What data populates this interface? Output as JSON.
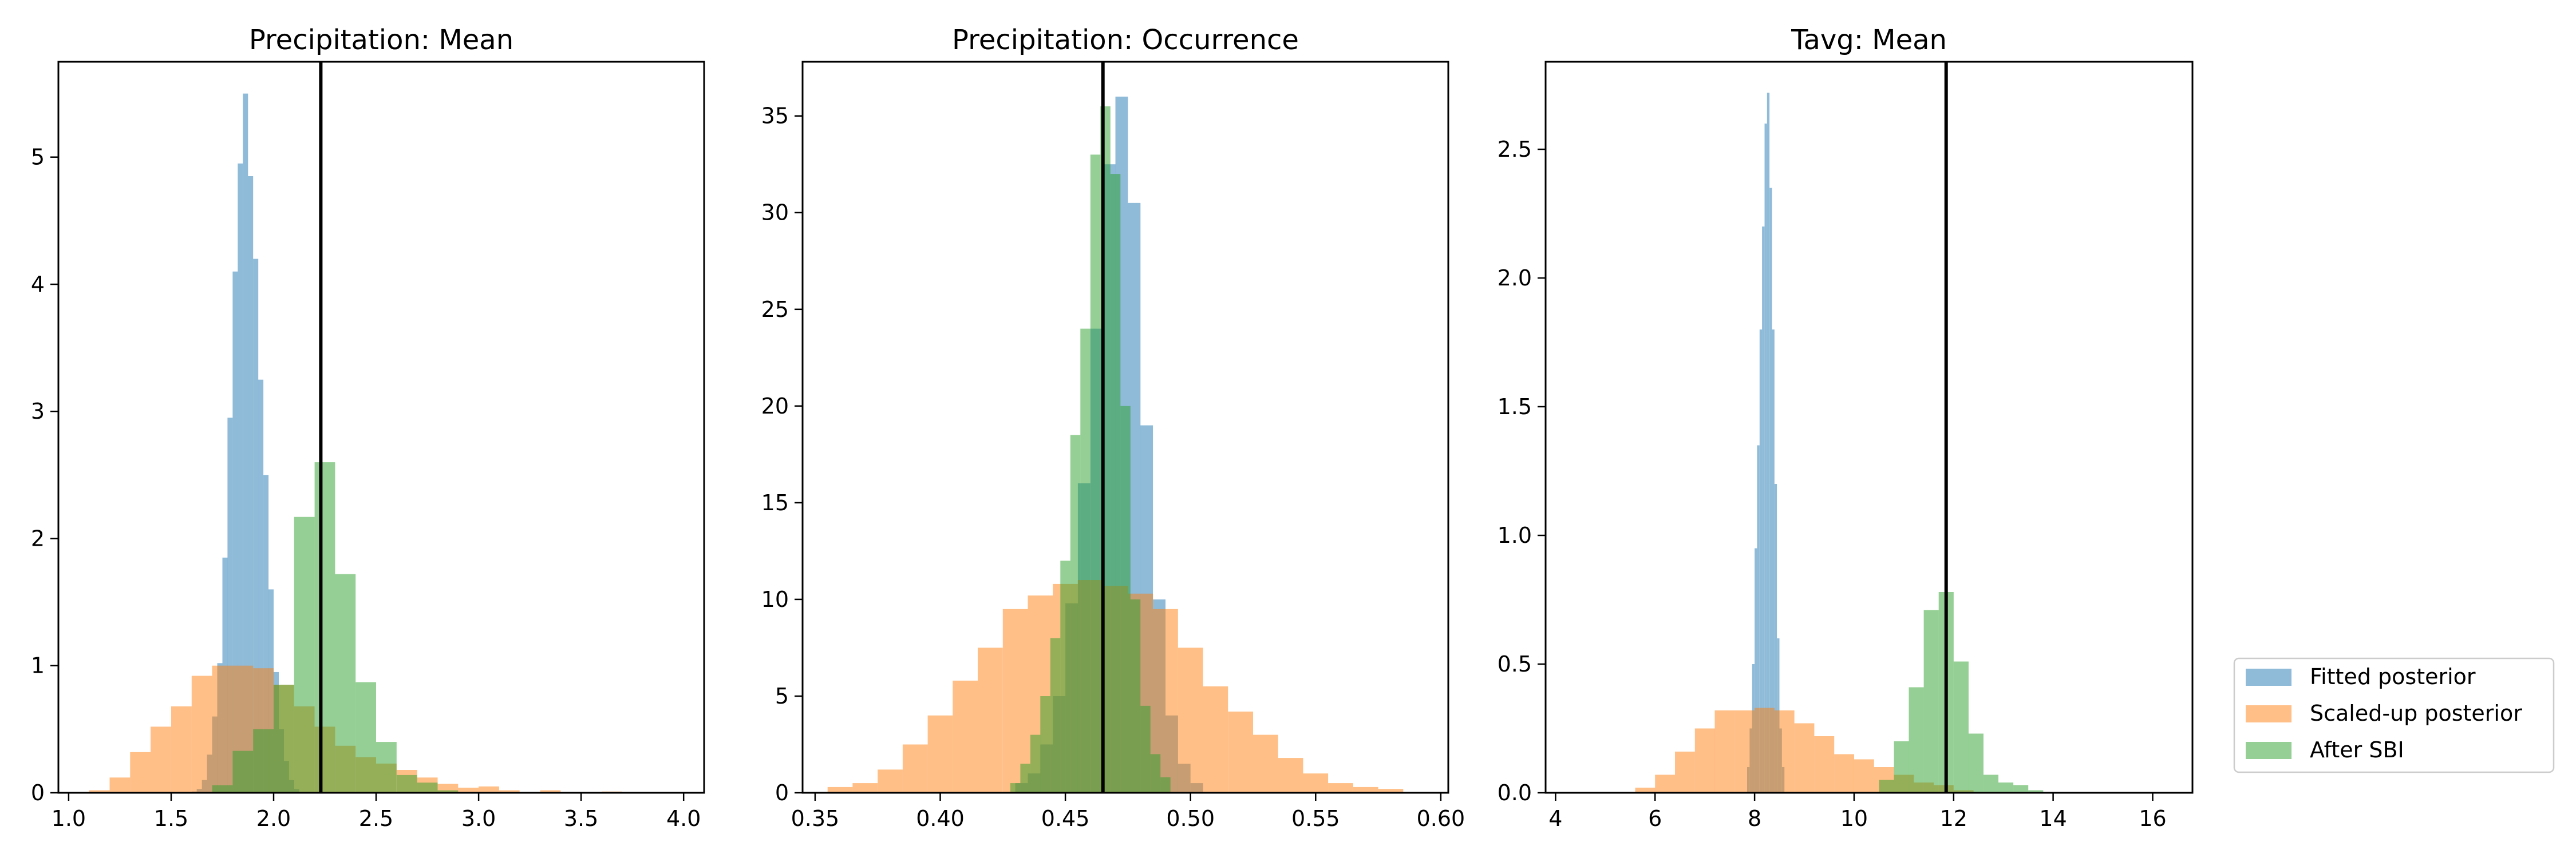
{
  "legend": {
    "placement": "right",
    "entries": [
      {
        "label": "Fitted posterior",
        "color": "#1f77b4"
      },
      {
        "label": "Scaled-up posterior",
        "color": "#ff7f0e"
      },
      {
        "label": "After SBI",
        "color": "#2ca02c"
      }
    ]
  },
  "chart_data": [
    {
      "type": "bar",
      "title": "Precipitation: Mean",
      "xlabel": "",
      "ylabel": "",
      "xlim": [
        0.95,
        4.1
      ],
      "ylim": [
        0,
        5.75
      ],
      "xticks": [
        "1.0",
        "1.5",
        "2.0",
        "2.5",
        "3.0",
        "3.5",
        "4.0"
      ],
      "xtick_values": [
        1.0,
        1.5,
        2.0,
        2.5,
        3.0,
        3.5,
        4.0
      ],
      "yticks": [
        "0",
        "1",
        "2",
        "3",
        "4",
        "5"
      ],
      "ytick_values": [
        0,
        1,
        2,
        3,
        4,
        5
      ],
      "reference_line_x": 2.23,
      "series": [
        {
          "name": "Fitted posterior",
          "bins": [
            [
              1.6,
              1.625,
              0.01
            ],
            [
              1.625,
              1.65,
              0.03
            ],
            [
              1.65,
              1.675,
              0.1
            ],
            [
              1.675,
              1.7,
              0.3
            ],
            [
              1.7,
              1.725,
              0.6
            ],
            [
              1.725,
              1.75,
              1.02
            ],
            [
              1.75,
              1.775,
              1.85
            ],
            [
              1.775,
              1.8,
              2.95
            ],
            [
              1.8,
              1.825,
              4.1
            ],
            [
              1.825,
              1.85,
              4.95
            ],
            [
              1.85,
              1.875,
              5.5
            ],
            [
              1.875,
              1.9,
              4.85
            ],
            [
              1.9,
              1.925,
              4.2
            ],
            [
              1.925,
              1.95,
              3.25
            ],
            [
              1.95,
              1.975,
              2.5
            ],
            [
              1.975,
              2.0,
              1.6
            ],
            [
              2.0,
              2.025,
              0.95
            ],
            [
              2.025,
              2.05,
              0.5
            ],
            [
              2.05,
              2.075,
              0.25
            ],
            [
              2.075,
              2.1,
              0.1
            ],
            [
              2.1,
              2.125,
              0.03
            ]
          ]
        },
        {
          "name": "Scaled-up posterior",
          "bins": [
            [
              1.1,
              1.2,
              0.02
            ],
            [
              1.2,
              1.3,
              0.12
            ],
            [
              1.3,
              1.4,
              0.32
            ],
            [
              1.4,
              1.5,
              0.52
            ],
            [
              1.5,
              1.6,
              0.68
            ],
            [
              1.6,
              1.7,
              0.92
            ],
            [
              1.7,
              1.8,
              1.0
            ],
            [
              1.8,
              1.9,
              1.0
            ],
            [
              1.9,
              2.0,
              0.98
            ],
            [
              2.0,
              2.1,
              0.85
            ],
            [
              2.1,
              2.2,
              0.68
            ],
            [
              2.2,
              2.3,
              0.52
            ],
            [
              2.3,
              2.4,
              0.37
            ],
            [
              2.4,
              2.5,
              0.28
            ],
            [
              2.5,
              2.6,
              0.23
            ],
            [
              2.6,
              2.7,
              0.18
            ],
            [
              2.7,
              2.8,
              0.12
            ],
            [
              2.8,
              2.9,
              0.07
            ],
            [
              2.9,
              3.0,
              0.04
            ],
            [
              3.0,
              3.1,
              0.05
            ],
            [
              3.1,
              3.2,
              0.02
            ],
            [
              3.3,
              3.4,
              0.02
            ],
            [
              3.6,
              3.7,
              0.01
            ]
          ]
        },
        {
          "name": "After SBI",
          "bins": [
            [
              1.7,
              1.8,
              0.06
            ],
            [
              1.8,
              1.9,
              0.33
            ],
            [
              1.9,
              2.0,
              0.5
            ],
            [
              2.0,
              2.1,
              0.85
            ],
            [
              2.1,
              2.2,
              2.17
            ],
            [
              2.2,
              2.3,
              2.6
            ],
            [
              2.3,
              2.4,
              1.72
            ],
            [
              2.4,
              2.5,
              0.87
            ],
            [
              2.5,
              2.6,
              0.4
            ],
            [
              2.6,
              2.7,
              0.14
            ],
            [
              2.7,
              2.8,
              0.08
            ],
            [
              2.8,
              2.9,
              0.02
            ]
          ]
        }
      ]
    },
    {
      "type": "bar",
      "title": "Precipitation: Occurrence",
      "xlabel": "",
      "ylabel": "",
      "xlim": [
        0.345,
        0.603
      ],
      "ylim": [
        0,
        37.8
      ],
      "xticks": [
        "0.35",
        "0.40",
        "0.45",
        "0.50",
        "0.55",
        "0.60"
      ],
      "xtick_values": [
        0.35,
        0.4,
        0.45,
        0.5,
        0.55,
        0.6
      ],
      "yticks": [
        "0",
        "5",
        "10",
        "15",
        "20",
        "25",
        "30",
        "35"
      ],
      "ytick_values": [
        0,
        5,
        10,
        15,
        20,
        25,
        30,
        35
      ],
      "reference_line_x": 0.465,
      "series": [
        {
          "name": "Fitted posterior",
          "bins": [
            [
              0.43,
              0.435,
              0.5
            ],
            [
              0.435,
              0.44,
              1.0
            ],
            [
              0.44,
              0.445,
              2.5
            ],
            [
              0.445,
              0.45,
              5.0
            ],
            [
              0.45,
              0.455,
              9.8
            ],
            [
              0.455,
              0.46,
              16.0
            ],
            [
              0.46,
              0.465,
              24.0
            ],
            [
              0.465,
              0.47,
              32.5
            ],
            [
              0.47,
              0.475,
              36.0
            ],
            [
              0.475,
              0.48,
              30.5
            ],
            [
              0.48,
              0.485,
              19.0
            ],
            [
              0.485,
              0.49,
              10.0
            ],
            [
              0.49,
              0.495,
              4.0
            ],
            [
              0.495,
              0.5,
              1.5
            ],
            [
              0.5,
              0.505,
              0.5
            ]
          ]
        },
        {
          "name": "Scaled-up posterior",
          "bins": [
            [
              0.355,
              0.365,
              0.3
            ],
            [
              0.365,
              0.375,
              0.5
            ],
            [
              0.375,
              0.385,
              1.2
            ],
            [
              0.385,
              0.395,
              2.5
            ],
            [
              0.395,
              0.405,
              4.0
            ],
            [
              0.405,
              0.415,
              5.8
            ],
            [
              0.415,
              0.425,
              7.5
            ],
            [
              0.425,
              0.435,
              9.5
            ],
            [
              0.435,
              0.445,
              10.2
            ],
            [
              0.445,
              0.455,
              10.8
            ],
            [
              0.455,
              0.465,
              11.0
            ],
            [
              0.465,
              0.475,
              10.7
            ],
            [
              0.475,
              0.485,
              10.3
            ],
            [
              0.485,
              0.495,
              9.5
            ],
            [
              0.495,
              0.505,
              7.5
            ],
            [
              0.505,
              0.515,
              5.5
            ],
            [
              0.515,
              0.525,
              4.2
            ],
            [
              0.525,
              0.535,
              3.0
            ],
            [
              0.535,
              0.545,
              1.8
            ],
            [
              0.545,
              0.555,
              1.0
            ],
            [
              0.555,
              0.565,
              0.5
            ],
            [
              0.565,
              0.575,
              0.3
            ],
            [
              0.575,
              0.585,
              0.2
            ]
          ]
        },
        {
          "name": "After SBI",
          "bins": [
            [
              0.428,
              0.432,
              0.5
            ],
            [
              0.432,
              0.436,
              1.5
            ],
            [
              0.436,
              0.44,
              3.0
            ],
            [
              0.44,
              0.444,
              5.0
            ],
            [
              0.444,
              0.448,
              8.0
            ],
            [
              0.448,
              0.452,
              12.0
            ],
            [
              0.452,
              0.456,
              18.5
            ],
            [
              0.456,
              0.46,
              24.0
            ],
            [
              0.46,
              0.464,
              33.0
            ],
            [
              0.464,
              0.468,
              35.5
            ],
            [
              0.468,
              0.472,
              32.0
            ],
            [
              0.472,
              0.476,
              20.0
            ],
            [
              0.476,
              0.48,
              10.0
            ],
            [
              0.48,
              0.484,
              4.5
            ],
            [
              0.484,
              0.488,
              2.0
            ],
            [
              0.488,
              0.492,
              0.8
            ]
          ]
        }
      ]
    },
    {
      "type": "bar",
      "title": "Tavg: Mean",
      "xlabel": "",
      "ylabel": "",
      "xlim": [
        3.8,
        16.8
      ],
      "ylim": [
        0,
        2.84
      ],
      "xticks": [
        "4",
        "6",
        "8",
        "10",
        "12",
        "14",
        "16"
      ],
      "xtick_values": [
        4,
        6,
        8,
        10,
        12,
        14,
        16
      ],
      "yticks": [
        "0.0",
        "0.5",
        "1.0",
        "1.5",
        "2.0",
        "2.5"
      ],
      "ytick_values": [
        0.0,
        0.5,
        1.0,
        1.5,
        2.0,
        2.5
      ],
      "reference_line_x": 11.85,
      "series": [
        {
          "name": "Fitted posterior",
          "bins": [
            [
              7.85,
              7.9,
              0.1
            ],
            [
              7.9,
              7.95,
              0.25
            ],
            [
              7.95,
              8.0,
              0.5
            ],
            [
              8.0,
              8.05,
              0.95
            ],
            [
              8.05,
              8.1,
              1.35
            ],
            [
              8.1,
              8.15,
              1.8
            ],
            [
              8.15,
              8.2,
              2.2
            ],
            [
              8.2,
              8.25,
              2.6
            ],
            [
              8.25,
              8.3,
              2.72
            ],
            [
              8.3,
              8.35,
              2.35
            ],
            [
              8.35,
              8.4,
              1.8
            ],
            [
              8.4,
              8.45,
              1.2
            ],
            [
              8.45,
              8.5,
              0.6
            ],
            [
              8.5,
              8.55,
              0.25
            ],
            [
              8.55,
              8.6,
              0.1
            ]
          ]
        },
        {
          "name": "Scaled-up posterior",
          "bins": [
            [
              5.6,
              6.0,
              0.02
            ],
            [
              6.0,
              6.4,
              0.07
            ],
            [
              6.4,
              6.8,
              0.16
            ],
            [
              6.8,
              7.2,
              0.25
            ],
            [
              7.2,
              7.6,
              0.32
            ],
            [
              7.6,
              8.0,
              0.32
            ],
            [
              8.0,
              8.4,
              0.33
            ],
            [
              8.4,
              8.8,
              0.32
            ],
            [
              8.8,
              9.2,
              0.27
            ],
            [
              9.2,
              9.6,
              0.22
            ],
            [
              9.6,
              10.0,
              0.15
            ],
            [
              10.0,
              10.4,
              0.13
            ],
            [
              10.4,
              10.8,
              0.1
            ],
            [
              10.8,
              11.2,
              0.07
            ],
            [
              11.2,
              11.6,
              0.04
            ],
            [
              11.6,
              12.0,
              0.03
            ],
            [
              12.0,
              12.4,
              0.01
            ]
          ]
        },
        {
          "name": "After SBI",
          "bins": [
            [
              10.5,
              10.8,
              0.05
            ],
            [
              10.8,
              11.1,
              0.2
            ],
            [
              11.1,
              11.4,
              0.41
            ],
            [
              11.4,
              11.7,
              0.71
            ],
            [
              11.7,
              12.0,
              0.78
            ],
            [
              12.0,
              12.3,
              0.51
            ],
            [
              12.3,
              12.6,
              0.23
            ],
            [
              12.6,
              12.9,
              0.07
            ],
            [
              12.9,
              13.2,
              0.04
            ],
            [
              13.2,
              13.5,
              0.03
            ],
            [
              13.5,
              13.8,
              0.01
            ]
          ]
        }
      ]
    }
  ]
}
